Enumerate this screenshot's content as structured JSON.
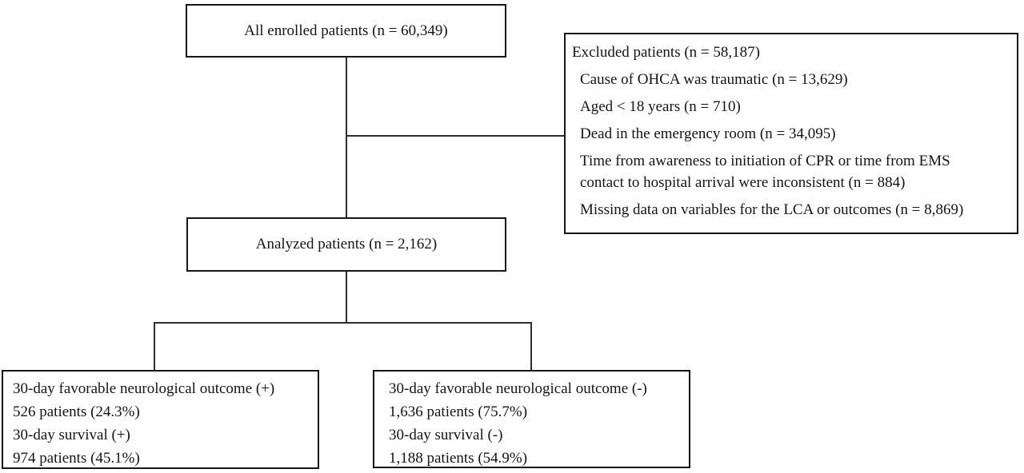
{
  "diagram": {
    "top_box": {
      "text": "All enrolled patients (n = 60,349)"
    },
    "excluded_box": {
      "title": "Excluded patients (n = 58,187)",
      "items": [
        "Cause of OHCA was traumatic (n = 13,629)",
        "Aged < 18 years (n = 710)",
        "Dead in the emergency room (n = 34,095)",
        "Time from awareness to initiation of CPR or time from EMS\ncontact to hospital arrival were inconsistent (n = 884)",
        "Missing data on variables for the LCA or outcomes (n = 8,869)"
      ]
    },
    "analyzed_box": {
      "text": "Analyzed patients (n = 2,162)"
    },
    "favorable_box": {
      "lines": [
        "30-day favorable neurological outcome (+)",
        "526 patients (24.3%)",
        "30-day survival (+)",
        "974 patients (45.1%)"
      ]
    },
    "unfavorable_box": {
      "lines": [
        "30-day favorable neurological outcome (-)",
        "1,636 patients (75.7%)",
        "30-day survival (-)",
        "1,188 patients (54.9%)"
      ]
    }
  },
  "colors": {
    "background": "#ffffff",
    "border": "#161616",
    "connector": "#2e2e2e",
    "text": "#151515"
  }
}
